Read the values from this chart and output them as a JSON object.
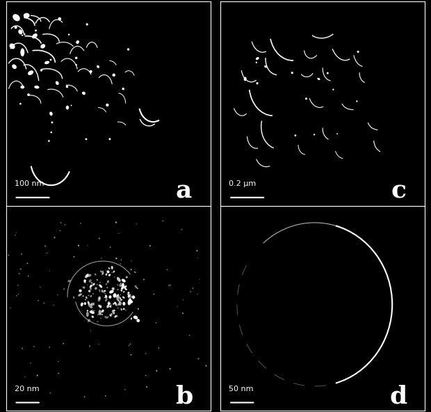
{
  "bg_color": "#000000",
  "fg_color": "#ffffff",
  "label_fontsize": 26,
  "scale_fontsize": 8,
  "fig_width": 6.2,
  "fig_height": 5.92,
  "dpi": 100,
  "panel_a_label": "a",
  "panel_b_label": "b",
  "panel_c_label": "c",
  "panel_d_label": "d",
  "panel_a_scale": "100 nm",
  "panel_b_scale": "20 nm",
  "panel_c_scale": "0.2 μm",
  "panel_d_scale": "50 nm"
}
